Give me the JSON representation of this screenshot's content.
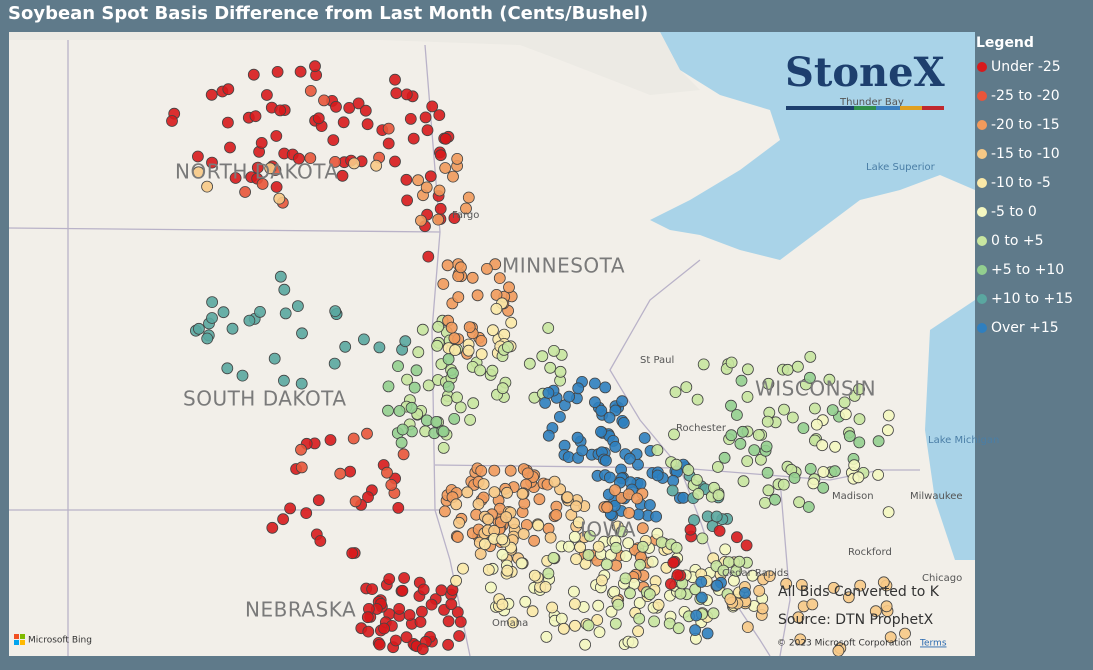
{
  "header": {
    "title": "Soybean Spot Basis Difference from Last Month (Cents/Bushel)"
  },
  "legend": {
    "title": "Legend",
    "items": [
      {
        "label": "Under -25",
        "color": "#d7191c"
      },
      {
        "label": "-25 to -20",
        "color": "#e8553a"
      },
      {
        "label": "-20 to -15",
        "color": "#f19a5c"
      },
      {
        "label": "-15 to -10",
        "color": "#f7c986"
      },
      {
        "label": "-10 to -5",
        "color": "#fbe9a8"
      },
      {
        "label": "-5 to 0",
        "color": "#f4f7c0"
      },
      {
        "label": "0 to +5",
        "color": "#c8e6a0"
      },
      {
        "label": "+5 to +10",
        "color": "#93cf8f"
      },
      {
        "label": "+10 to +15",
        "color": "#5aa7a0"
      },
      {
        "label": "Over +15",
        "color": "#2f7fbf"
      }
    ]
  },
  "map": {
    "states": [
      "NORTH DAKOTA",
      "MINNESOTA",
      "SOUTH DAKOTA",
      "WISCONSIN",
      "NEBRASKA",
      "IOWA"
    ],
    "places": [
      "Fargo",
      "St Paul",
      "Rochester",
      "Madison",
      "Milwaukee",
      "Rockford",
      "Cedar Rapids",
      "Chicago",
      "Omaha",
      "Thunder Bay",
      "Lake Superior",
      "Lake Michigan"
    ],
    "brand": "StoneX",
    "notes": [
      "All Bids Converted to K",
      "Source: DTN ProphetX"
    ],
    "attribution": "Microsoft Bing",
    "copyright": "© 2023 Microsoft Corporation",
    "terms": "Terms"
  }
}
